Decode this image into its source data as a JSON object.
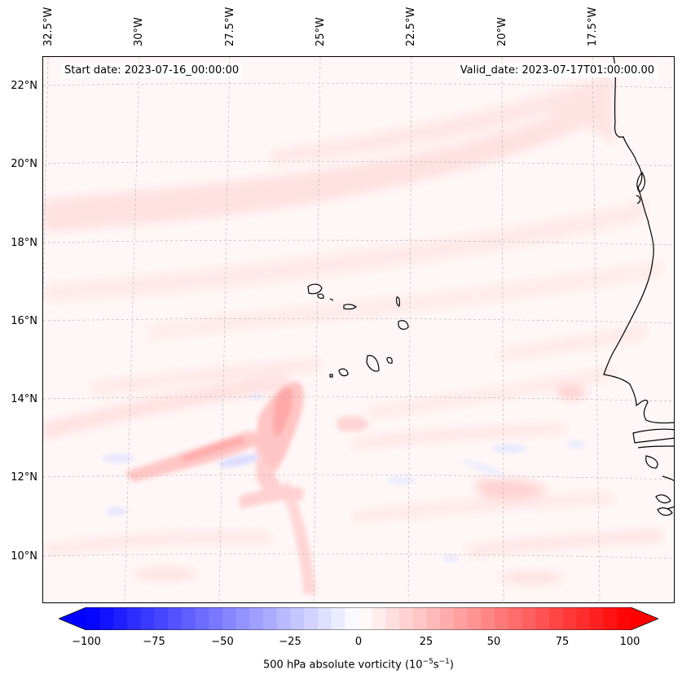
{
  "map": {
    "variable": "500 hPa absolute vorticity",
    "units_prefix": "(10",
    "units_exp1": "−5",
    "units_mid": "s",
    "units_exp2": "−1",
    "units_suffix": ")",
    "start_date": "Start date: 2023-07-16_00:00:00",
    "valid_date": "Valid_date: 2023-07-17T01:00:00.00",
    "lon_labels": [
      "32.5°W",
      "30°W",
      "27.5°W",
      "25°W",
      "22.5°W",
      "20°W",
      "17.5°W"
    ],
    "lat_labels": [
      "22°N",
      "20°N",
      "18°N",
      "16°N",
      "14°N",
      "12°N",
      "10°N"
    ],
    "extent": {
      "lon_min": -33.3,
      "lon_max": -15.3,
      "lat_min": 8.9,
      "lat_max": 22.8
    },
    "colorbar": {
      "min": -100,
      "max": 100,
      "step": 5,
      "ticks": [
        "−100",
        "−75",
        "−50",
        "−25",
        "0",
        "25",
        "50",
        "75",
        "100"
      ],
      "low_color": "#0000ff",
      "mid_color": "#ffffff",
      "high_color": "#ff0000",
      "extend": "both"
    },
    "features": {
      "west_africa_coast": "coastline",
      "cape_verde_islands": "islands"
    }
  }
}
